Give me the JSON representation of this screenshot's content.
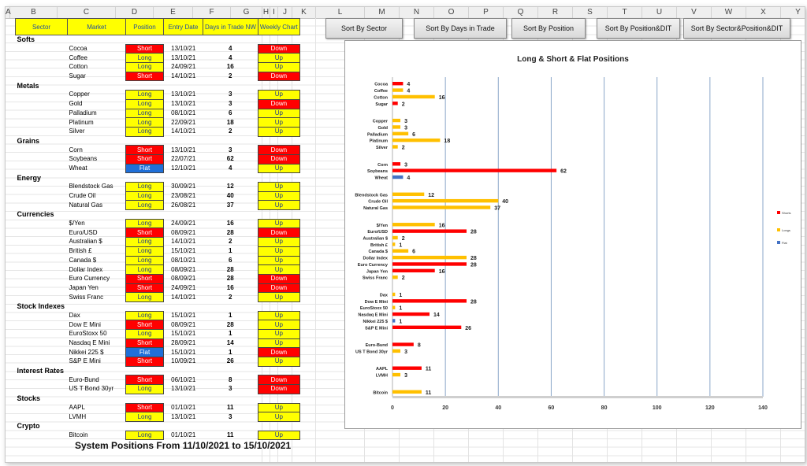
{
  "column_headers": [
    "A",
    "B",
    "C",
    "D",
    "E",
    "F",
    "G",
    "H",
    "I",
    "J",
    "K",
    "L",
    "M",
    "N",
    "O",
    "P",
    "Q",
    "R",
    "S",
    "T",
    "U",
    "V",
    "W",
    "X",
    "Y"
  ],
  "table_headers": {
    "sector": "Sector",
    "market": "Market",
    "position": "Position",
    "entry_date": "Entry Date",
    "days": "Days in Trade NW",
    "weekly": "Weekly Chart"
  },
  "rows": [
    {
      "sector": "Softs"
    },
    {
      "market": "Cocoa",
      "position": "Short",
      "date": "13/10/21",
      "days": "4",
      "weekly": "Down"
    },
    {
      "market": "Coffee",
      "position": "Long",
      "date": "13/10/21",
      "days": "4",
      "weekly": "Up"
    },
    {
      "market": "Cotton",
      "position": "Long",
      "date": "24/09/21",
      "days": "16",
      "weekly": "Up"
    },
    {
      "market": "Sugar",
      "position": "Short",
      "date": "14/10/21",
      "days": "2",
      "weekly": "Down"
    },
    {
      "sector": "Metals"
    },
    {
      "market": "Copper",
      "position": "Long",
      "date": "13/10/21",
      "days": "3",
      "weekly": "Up"
    },
    {
      "market": "Gold",
      "position": "Long",
      "date": "13/10/21",
      "days": "3",
      "weekly": "Down"
    },
    {
      "market": "Palladium",
      "position": "Long",
      "date": "08/10/21",
      "days": "6",
      "weekly": "Up"
    },
    {
      "market": "Platinum",
      "position": "Long",
      "date": "22/09/21",
      "days": "18",
      "weekly": "Up"
    },
    {
      "market": "Silver",
      "position": "Long",
      "date": "14/10/21",
      "days": "2",
      "weekly": "Up"
    },
    {
      "sector": "Grains"
    },
    {
      "market": "Corn",
      "position": "Short",
      "date": "13/10/21",
      "days": "3",
      "weekly": "Down"
    },
    {
      "market": "Soybeans",
      "position": "Short",
      "date": "22/07/21",
      "days": "62",
      "weekly": "Down"
    },
    {
      "market": "Wheat",
      "position": "Flat",
      "date": "12/10/21",
      "days": "4",
      "weekly": "Up"
    },
    {
      "sector": "Energy"
    },
    {
      "market": "Blendstock Gas",
      "position": "Long",
      "date": "30/09/21",
      "days": "12",
      "weekly": "Up"
    },
    {
      "market": "Crude Oil",
      "position": "Long",
      "date": "23/08/21",
      "days": "40",
      "weekly": "Up"
    },
    {
      "market": "Natural Gas",
      "position": "Long",
      "date": "26/08/21",
      "days": "37",
      "weekly": "Up"
    },
    {
      "sector": "Currencies"
    },
    {
      "market": "$/Yen",
      "position": "Long",
      "date": "24/09/21",
      "days": "16",
      "weekly": "Up"
    },
    {
      "market": "Euro/USD",
      "position": "Short",
      "date": "08/09/21",
      "days": "28",
      "weekly": "Down"
    },
    {
      "market": "Australian $",
      "position": "Long",
      "date": "14/10/21",
      "days": "2",
      "weekly": "Up"
    },
    {
      "market": "British £",
      "position": "Long",
      "date": "15/10/21",
      "days": "1",
      "weekly": "Up"
    },
    {
      "market": "Canada $",
      "position": "Long",
      "date": "08/10/21",
      "days": "6",
      "weekly": "Up"
    },
    {
      "market": "Dollar Index",
      "position": "Long",
      "date": "08/09/21",
      "days": "28",
      "weekly": "Up"
    },
    {
      "market": "Euro Currency",
      "position": "Short",
      "date": "08/09/21",
      "days": "28",
      "weekly": "Down"
    },
    {
      "market": "Japan Yen",
      "position": "Short",
      "date": "24/09/21",
      "days": "16",
      "weekly": "Down"
    },
    {
      "market": "Swiss Franc",
      "position": "Long",
      "date": "14/10/21",
      "days": "2",
      "weekly": "Up"
    },
    {
      "sector": "Stock Indexes"
    },
    {
      "market": "Dax",
      "position": "Long",
      "date": "15/10/21",
      "days": "1",
      "weekly": "Up"
    },
    {
      "market": "Dow E Mini",
      "position": "Short",
      "date": "08/09/21",
      "days": "28",
      "weekly": "Up"
    },
    {
      "market": "EuroStoxx 50",
      "position": "Long",
      "date": "15/10/21",
      "days": "1",
      "weekly": "Up"
    },
    {
      "market": "Nasdaq E Mini",
      "position": "Short",
      "date": "28/09/21",
      "days": "14",
      "weekly": "Up"
    },
    {
      "market": "Nikkei 225 $",
      "position": "Flat",
      "date": "15/10/21",
      "days": "1",
      "weekly": "Down"
    },
    {
      "market": "S&P E Mini",
      "position": "Short",
      "date": "10/09/21",
      "days": "26",
      "weekly": "Up"
    },
    {
      "sector": "Interest Rates"
    },
    {
      "market": "Euro-Bund",
      "position": "Short",
      "date": "06/10/21",
      "days": "8",
      "weekly": "Down"
    },
    {
      "market": "US T Bond 30yr",
      "position": "Long",
      "date": "13/10/21",
      "days": "3",
      "weekly": "Down"
    },
    {
      "sector": "Stocks"
    },
    {
      "market": "AAPL",
      "position": "Short",
      "date": "01/10/21",
      "days": "11",
      "weekly": "Up"
    },
    {
      "market": "LVMH",
      "position": "Long",
      "date": "13/10/21",
      "days": "3",
      "weekly": "Up"
    },
    {
      "sector": "Crypto"
    },
    {
      "market": "Bitcoin",
      "position": "Long",
      "date": "01/10/21",
      "days": "11",
      "weekly": "Up"
    }
  ],
  "footer": "System Positions From  11/10/2021  to 15/10/2021",
  "buttons": {
    "sort_sector": "Sort By Sector",
    "sort_days": "Sort By Days in Trade",
    "sort_position": "Sort By Position",
    "sort_position_dit": "Sort By Position&DIT",
    "sort_sector_position_dit": "Sort By Sector&Position&DIT"
  },
  "colors": {
    "short": "#ff0000",
    "long": "#ffc000",
    "flat": "#4472c4",
    "header_fill": "#ffff00"
  },
  "chart_data": {
    "type": "bar",
    "orientation": "horizontal",
    "title": "Long & Short & Flat Positions",
    "xlim": [
      0,
      140
    ],
    "xticks": [
      0,
      20,
      40,
      60,
      80,
      100,
      120,
      140
    ],
    "grid": "vertical",
    "legend_position": "right",
    "legend": [
      "Shorts",
      "Longs",
      "Flat"
    ],
    "groups": [
      [
        {
          "label": "Cocoa",
          "value": 4,
          "kind": "short"
        },
        {
          "label": "Coffee",
          "value": 4,
          "kind": "long"
        },
        {
          "label": "Cotton",
          "value": 16,
          "kind": "long"
        },
        {
          "label": "Sugar",
          "value": 2,
          "kind": "short"
        }
      ],
      [
        {
          "label": "Copper",
          "value": 3,
          "kind": "long"
        },
        {
          "label": "Gold",
          "value": 3,
          "kind": "long"
        },
        {
          "label": "Palladium",
          "value": 6,
          "kind": "long"
        },
        {
          "label": "Platinum",
          "value": 18,
          "kind": "long"
        },
        {
          "label": "Silver",
          "value": 2,
          "kind": "long"
        }
      ],
      [
        {
          "label": "Corn",
          "value": 3,
          "kind": "short"
        },
        {
          "label": "Soybeans",
          "value": 62,
          "kind": "short"
        },
        {
          "label": "Wheat",
          "value": 4,
          "kind": "flat"
        }
      ],
      [
        {
          "label": "Blendstock Gas",
          "value": 12,
          "kind": "long"
        },
        {
          "label": "Crude Oil",
          "value": 40,
          "kind": "long"
        },
        {
          "label": "Natural Gas",
          "value": 37,
          "kind": "long"
        }
      ],
      [
        {
          "label": "$/Yen",
          "value": 16,
          "kind": "long"
        },
        {
          "label": "Euro/USD",
          "value": 28,
          "kind": "short"
        },
        {
          "label": "Australian $",
          "value": 2,
          "kind": "long"
        },
        {
          "label": "British £",
          "value": 1,
          "kind": "long"
        },
        {
          "label": "Canada $",
          "value": 6,
          "kind": "long"
        },
        {
          "label": "Dollar Index",
          "value": 28,
          "kind": "long"
        },
        {
          "label": "Euro Currency",
          "value": 28,
          "kind": "short"
        },
        {
          "label": "Japan Yen",
          "value": 16,
          "kind": "short"
        },
        {
          "label": "Swiss Franc",
          "value": 2,
          "kind": "long"
        }
      ],
      [
        {
          "label": "Dax",
          "value": 1,
          "kind": "long"
        },
        {
          "label": "Dow E Mini",
          "value": 28,
          "kind": "short"
        },
        {
          "label": "EuroStoxx 50",
          "value": 1,
          "kind": "long"
        },
        {
          "label": "Nasdaq E Mini",
          "value": 14,
          "kind": "short"
        },
        {
          "label": "Nikkei 225 $",
          "value": 1,
          "kind": "flat"
        },
        {
          "label": "S&P E Mini",
          "value": 26,
          "kind": "short"
        }
      ],
      [
        {
          "label": "Euro-Bund",
          "value": 8,
          "kind": "short"
        },
        {
          "label": "US T Bond 30yr",
          "value": 3,
          "kind": "long"
        }
      ],
      [
        {
          "label": "AAPL",
          "value": 11,
          "kind": "short"
        },
        {
          "label": "LVMH",
          "value": 3,
          "kind": "long"
        }
      ],
      [
        {
          "label": "Bitcoin",
          "value": 11,
          "kind": "long"
        }
      ]
    ]
  }
}
